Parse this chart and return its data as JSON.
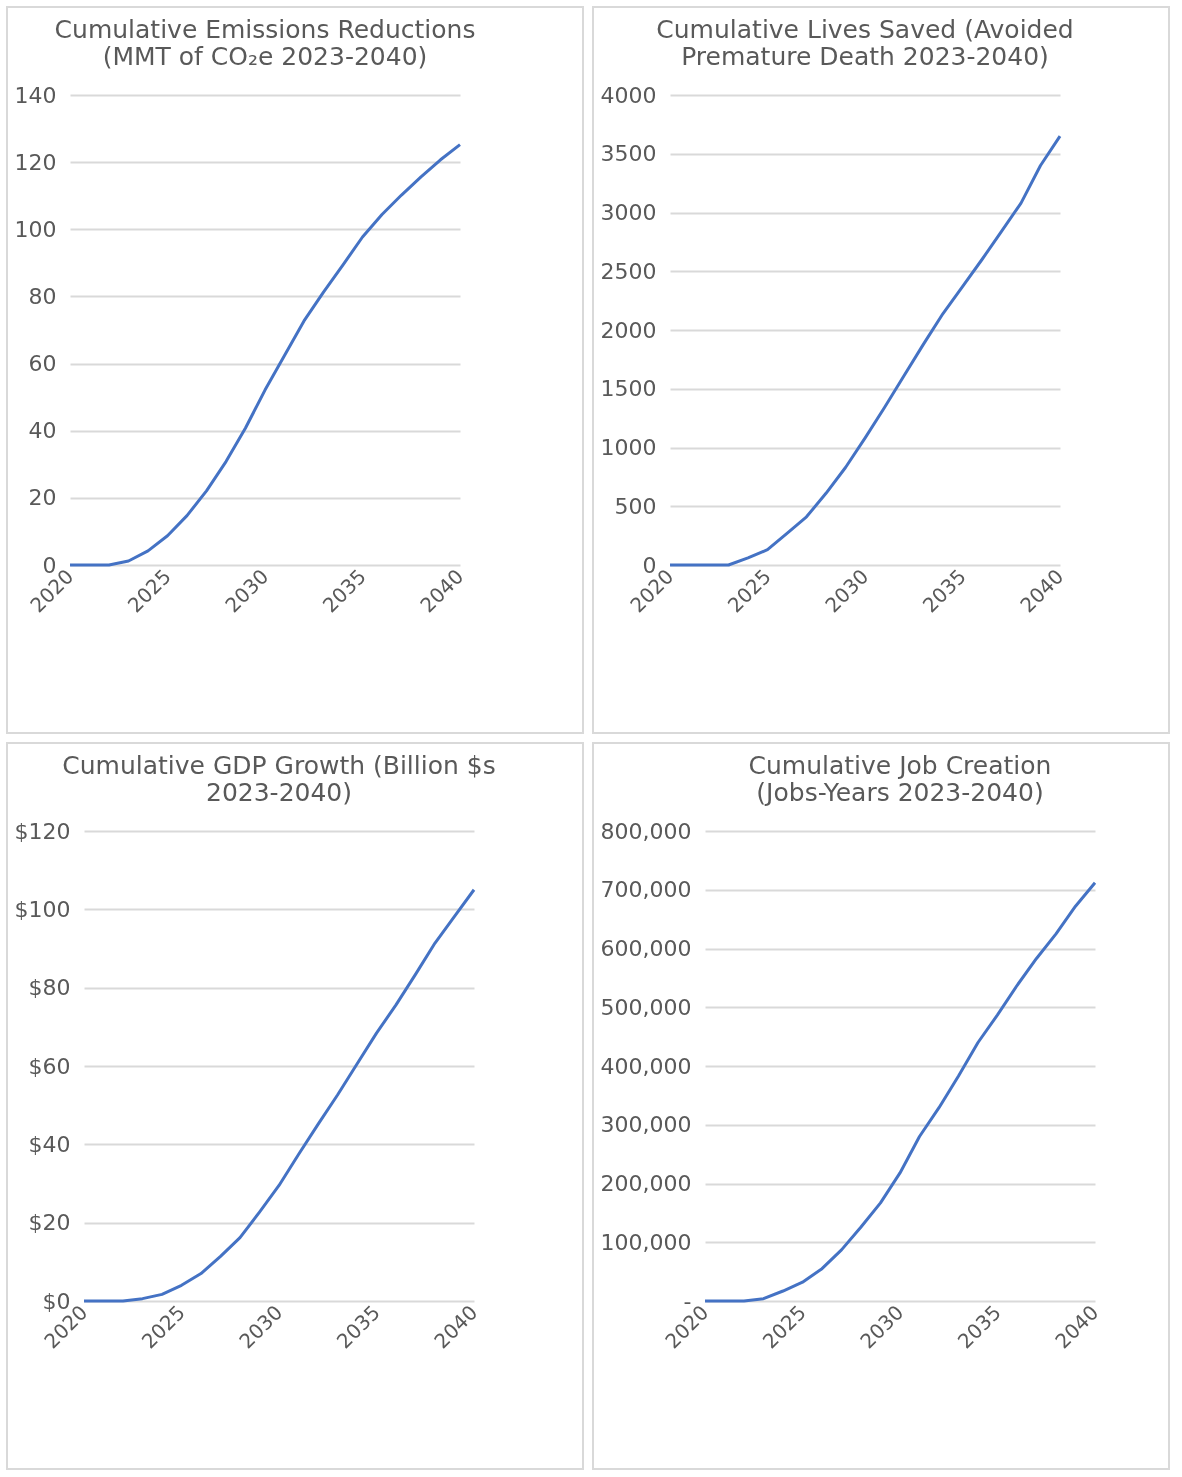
{
  "chart_data": [
    {
      "type": "line",
      "title": "Cumulative Emissions Reductions (MMT of CO₂e 2023-2040)",
      "x": [
        2020,
        2021,
        2022,
        2023,
        2024,
        2025,
        2026,
        2027,
        2028,
        2029,
        2030,
        2031,
        2032,
        2033,
        2034,
        2035,
        2036,
        2037,
        2038,
        2039,
        2040
      ],
      "series": [
        {
          "color": "#4472c4",
          "values": [
            0,
            0,
            0,
            1.2,
            4.2,
            8.7,
            14.7,
            22.1,
            30.8,
            40.8,
            52.1,
            62.4,
            72.7,
            81.3,
            89.4,
            97.7,
            104.4,
            110.2,
            115.6,
            120.7,
            125.2
          ]
        }
      ],
      "xlim": [
        2020,
        2040
      ],
      "xticks": [
        2020,
        2025,
        2030,
        2035,
        2040
      ],
      "ylim": [
        0,
        140
      ],
      "yticks": [
        0,
        20,
        40,
        60,
        80,
        100,
        120,
        140
      ],
      "grid": "y"
    },
    {
      "type": "line",
      "title": "Cumulative Lives Saved (Avoided Premature Death 2023-2040)",
      "x": [
        2020,
        2021,
        2022,
        2023,
        2024,
        2025,
        2026,
        2027,
        2028,
        2029,
        2030,
        2031,
        2032,
        2033,
        2034,
        2035,
        2036,
        2037,
        2038,
        2039,
        2040
      ],
      "series": [
        {
          "color": "#4472c4",
          "values": [
            0,
            0,
            0,
            0,
            60,
            130,
            270,
            410,
            610,
            830,
            1080,
            1340,
            1610,
            1880,
            2140,
            2370,
            2600,
            2840,
            3080,
            3400,
            3650
          ]
        }
      ],
      "xlim": [
        2020,
        2040
      ],
      "xticks": [
        2020,
        2025,
        2030,
        2035,
        2040
      ],
      "ylim": [
        0,
        4000
      ],
      "yticks": [
        0,
        500,
        1000,
        1500,
        2000,
        2500,
        3000,
        3500,
        4000
      ],
      "grid": "y"
    },
    {
      "type": "line",
      "title": "Cumulative GDP Growth (Billion $s 2023-2040)",
      "x": [
        2020,
        2021,
        2022,
        2023,
        2024,
        2025,
        2026,
        2027,
        2028,
        2029,
        2030,
        2031,
        2032,
        2033,
        2034,
        2035,
        2036,
        2037,
        2038,
        2039,
        2040
      ],
      "series": [
        {
          "color": "#4472c4",
          "values": [
            0,
            0,
            0,
            0.6,
            1.7,
            4.0,
            7.0,
            11.4,
            16.2,
            22.7,
            29.5,
            37.4,
            45.1,
            52.6,
            60.5,
            68.4,
            75.6,
            83.4,
            91.4,
            98.2,
            105.0
          ]
        }
      ],
      "xlim": [
        2020,
        2040
      ],
      "xticks": [
        2020,
        2025,
        2030,
        2035,
        2040
      ],
      "ylim": [
        0,
        120
      ],
      "yticks": [
        {
          "value": 0,
          "label": "$0"
        },
        {
          "value": 20,
          "label": "$20"
        },
        {
          "value": 40,
          "label": "$40"
        },
        {
          "value": 60,
          "label": "$60"
        },
        {
          "value": 80,
          "label": "$80"
        },
        {
          "value": 100,
          "label": "$100"
        },
        {
          "value": 120,
          "label": "$120"
        }
      ],
      "grid": "y"
    },
    {
      "type": "line",
      "title": "Cumulative Job Creation (Jobs-Years 2023-2040)",
      "x": [
        2020,
        2021,
        2022,
        2023,
        2024,
        2025,
        2026,
        2027,
        2028,
        2029,
        2030,
        2031,
        2032,
        2033,
        2034,
        2035,
        2036,
        2037,
        2038,
        2039,
        2040
      ],
      "series": [
        {
          "color": "#4472c4",
          "values": [
            0,
            0,
            0,
            4000,
            17000,
            32000,
            55000,
            87000,
            126000,
            167000,
            218000,
            280000,
            329000,
            383000,
            440000,
            487000,
            537000,
            583000,
            625000,
            672000,
            712000
          ]
        }
      ],
      "xlim": [
        2020,
        2040
      ],
      "xticks": [
        2020,
        2025,
        2030,
        2035,
        2040
      ],
      "ylim": [
        0,
        800000
      ],
      "yticks": [
        {
          "value": 0,
          "label": "-"
        },
        {
          "value": 100000,
          "label": "100,000"
        },
        {
          "value": 200000,
          "label": "200,000"
        },
        {
          "value": 300000,
          "label": "300,000"
        },
        {
          "value": 400000,
          "label": "400,000"
        },
        {
          "value": 500000,
          "label": "500,000"
        },
        {
          "value": 600000,
          "label": "600,000"
        },
        {
          "value": 700000,
          "label": "700,000"
        },
        {
          "value": 800000,
          "label": "800,000"
        }
      ],
      "grid": "y"
    }
  ]
}
